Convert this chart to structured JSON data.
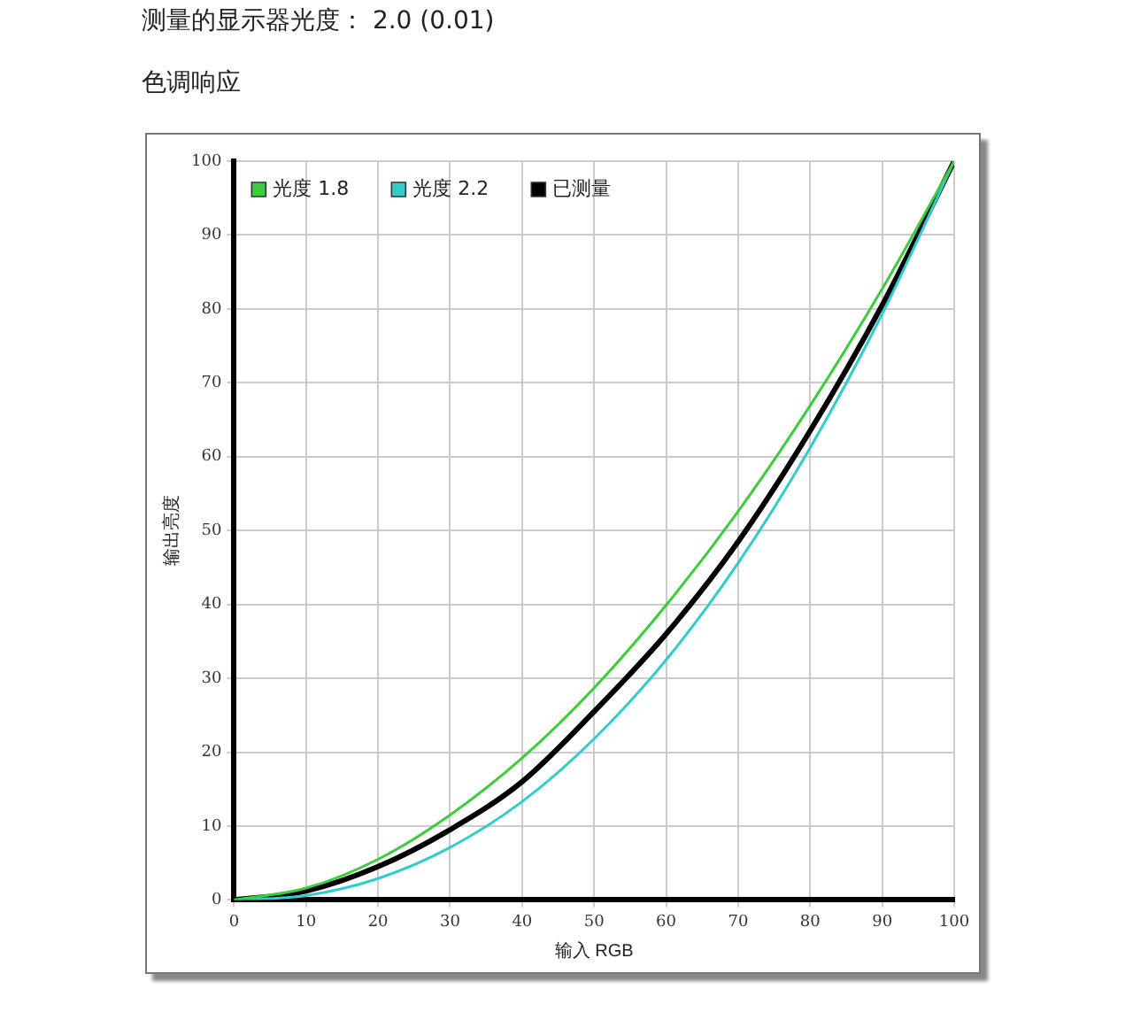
{
  "chart_data": {
    "type": "line",
    "title": "测量的显示器光度： 2.0 (0.01)",
    "subtitle": "色调响应",
    "xlabel": "输入 RGB",
    "ylabel": "输出亮度",
    "x": [
      0,
      10,
      20,
      30,
      40,
      50,
      60,
      70,
      80,
      90,
      100
    ],
    "series": [
      {
        "name": "光度 1.8",
        "color": "#3ccc3c",
        "values": [
          0,
          1.6,
          5.5,
          11.5,
          19.2,
          28.7,
          39.9,
          52.6,
          66.9,
          82.7,
          100
        ]
      },
      {
        "name": "光度 2.2",
        "color": "#33cccc",
        "values": [
          0,
          0.6,
          2.9,
          7.1,
          13.3,
          21.8,
          32.5,
          45.6,
          61.2,
          79.3,
          100
        ]
      },
      {
        "name": "已测量",
        "color": "#000000",
        "values": [
          0,
          1.2,
          4.5,
          9.5,
          16,
          25.5,
          36,
          48.5,
          63.5,
          80.5,
          100
        ]
      }
    ],
    "xlim": [
      0,
      100
    ],
    "xticks": [
      0,
      10,
      20,
      30,
      40,
      50,
      60,
      70,
      80,
      90,
      100
    ],
    "ylim": [
      0,
      100
    ],
    "yticks": [
      0,
      10,
      20,
      30,
      40,
      50,
      60,
      70,
      80,
      90,
      100
    ],
    "grid": true,
    "legend": "top left",
    "marker": "none",
    "line_style": "solid"
  }
}
